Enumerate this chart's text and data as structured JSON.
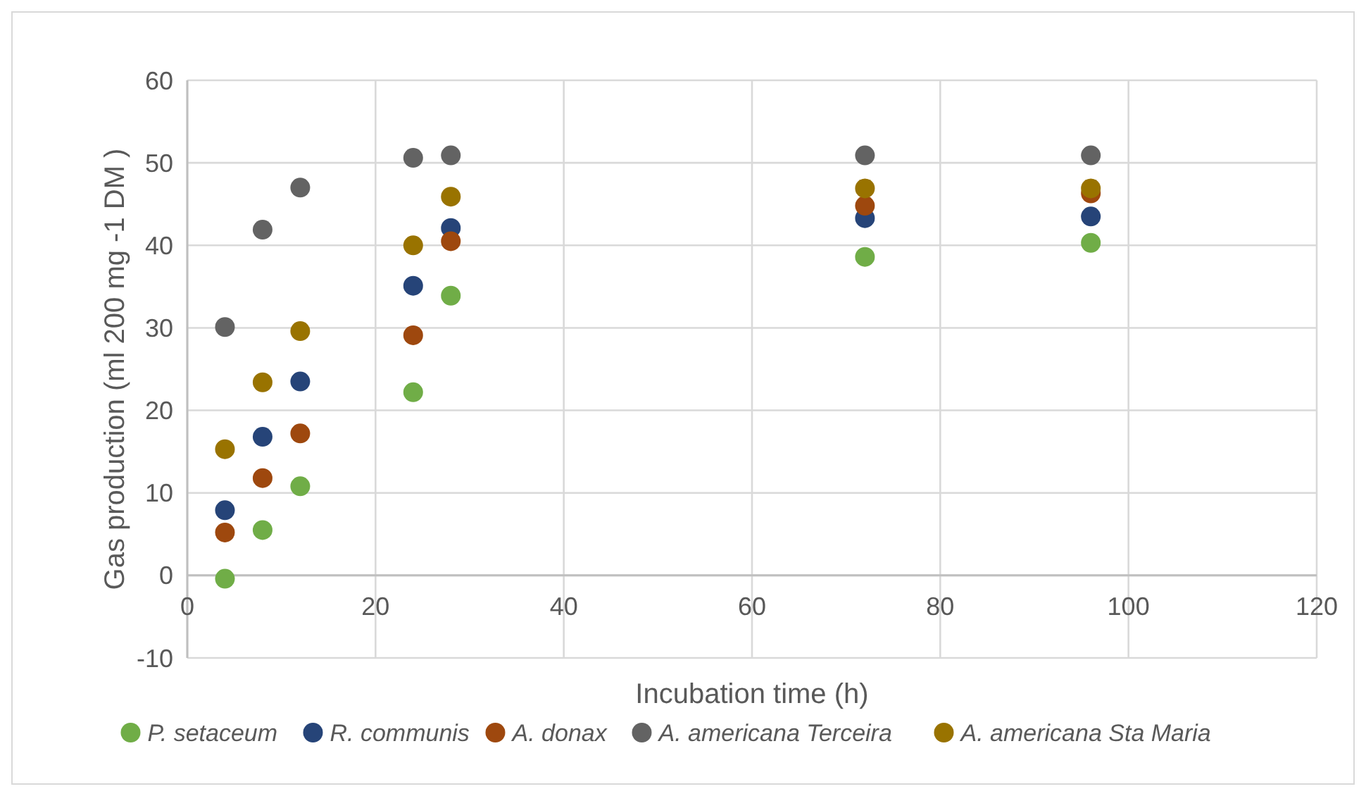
{
  "chart_data": {
    "type": "scatter",
    "xlabel": "Incubation time (h)",
    "ylabel": "Gas production (ml 200 mg -1 DM )",
    "x": [
      4,
      8,
      12,
      24,
      28,
      72,
      96
    ],
    "series": [
      {
        "name": "P. setaceum",
        "color": "#70ad47",
        "values": [
          -0.4,
          5.5,
          10.8,
          22.2,
          33.9,
          38.6,
          40.3
        ]
      },
      {
        "name": "R. communis",
        "color": "#264478",
        "values": [
          7.9,
          16.8,
          23.5,
          35.1,
          42.1,
          43.3,
          43.5
        ]
      },
      {
        "name": "A. donax",
        "color": "#9e480e",
        "values": [
          5.2,
          11.8,
          17.2,
          29.1,
          40.5,
          44.8,
          46.3
        ]
      },
      {
        "name": "A. americana Terceira",
        "color": "#636363",
        "values": [
          30.1,
          41.9,
          47,
          50.6,
          50.9,
          50.9,
          50.9
        ]
      },
      {
        "name": "A. americana Sta Maria",
        "color": "#997300",
        "values": [
          15.3,
          23.4,
          29.6,
          40,
          45.9,
          46.9,
          46.9
        ]
      }
    ],
    "xlim": [
      0,
      120
    ],
    "xticks": [
      0,
      20,
      40,
      60,
      80,
      100,
      120
    ],
    "ylim": [
      -10,
      60
    ],
    "yticks": [
      -10,
      0,
      10,
      20,
      30,
      40,
      50,
      60
    ],
    "grid": true,
    "legend": "bottom",
    "marker": "circle"
  }
}
